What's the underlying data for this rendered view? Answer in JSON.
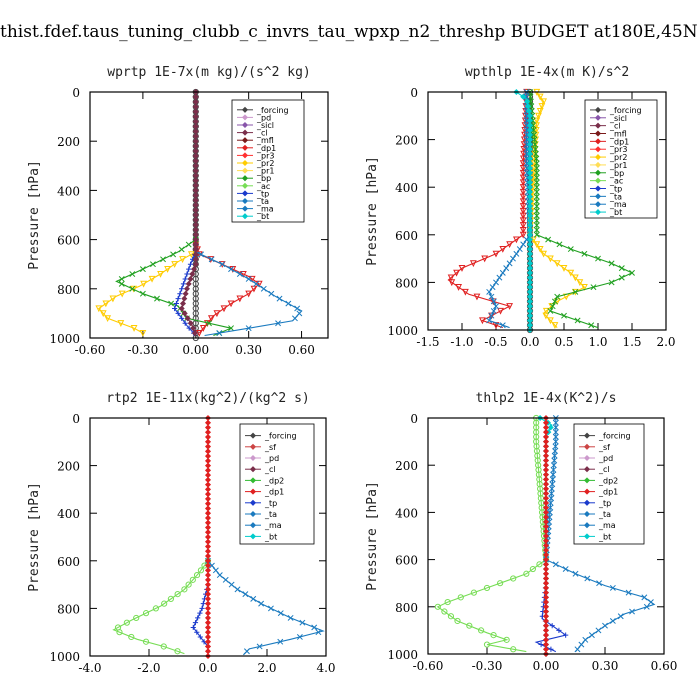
{
  "page_title": "thist.fdef.taus_tuning_clubb_c_invrs_tau_wpxp_n2_threshp  BUDGET at180E,45N",
  "colors": {
    "forcing": "#444444",
    "pd": "#cc99cc",
    "sicl": "#8855aa",
    "cl": "#7a2e4a",
    "mfl": "#7a1a1a",
    "dp1": "#e02020",
    "pr3": "#ff3030",
    "pr2": "#ffcc00",
    "pr1": "#ffdd55",
    "bp": "#20a020",
    "ac": "#77dd55",
    "tp": "#1a3acc",
    "ta": "#1a7abf",
    "ma": "#1a7abf",
    "bt": "#00cccc",
    "sf": "#cc4444",
    "dp2": "#33bb33"
  },
  "chart_data": [
    {
      "type": "line",
      "title": "wprtp   1E-7x(m kg)/(s^2 kg)",
      "ylabel": "Pressure [hPa]",
      "xlim": [
        -0.6,
        0.75
      ],
      "ylim": [
        1000,
        0
      ],
      "xticks": [
        -0.6,
        -0.3,
        0.0,
        0.3,
        0.6
      ],
      "xticklabels": [
        "-0.60",
        "-0.30",
        "0.00",
        "0.30",
        "0.60"
      ],
      "yticks": [
        0,
        200,
        400,
        600,
        800,
        1000
      ],
      "yticklabels": [
        "0",
        "200",
        "400",
        "600",
        "800",
        "1000"
      ],
      "legend": [
        "_forcing",
        "_pd",
        "_sicl",
        "_cl",
        "_mfl",
        "_dp1",
        "_pr3",
        "_pr2",
        "_pr1",
        "_bp",
        "_ac",
        "_tp",
        "_ta",
        "_ma",
        "_bt"
      ],
      "series": [
        {
          "name": "_forcing",
          "key": "forcing",
          "marker": "circle",
          "points": [
            [
              0.0,
              0
            ],
            [
              0.0,
              1000
            ]
          ]
        },
        {
          "name": "_dp1",
          "key": "dp1",
          "marker": "tri",
          "points": [
            [
              0.0,
              620
            ],
            [
              0.02,
              660
            ],
            [
              0.15,
              700
            ],
            [
              0.3,
              750
            ],
            [
              0.36,
              780
            ],
            [
              0.3,
              820
            ],
            [
              0.2,
              860
            ],
            [
              0.1,
              910
            ],
            [
              0.02,
              980
            ]
          ]
        },
        {
          "name": "_pr2",
          "key": "pr2",
          "marker": "tri",
          "points": [
            [
              0.0,
              650
            ],
            [
              -0.1,
              690
            ],
            [
              -0.2,
              740
            ],
            [
              -0.32,
              790
            ],
            [
              -0.45,
              830
            ],
            [
              -0.55,
              880
            ],
            [
              -0.5,
              920
            ],
            [
              -0.35,
              960
            ],
            [
              -0.3,
              980
            ]
          ]
        },
        {
          "name": "_bp",
          "key": "bp",
          "marker": "x",
          "points": [
            [
              0.0,
              600
            ],
            [
              -0.1,
              650
            ],
            [
              -0.3,
              720
            ],
            [
              -0.45,
              770
            ],
            [
              -0.3,
              820
            ],
            [
              -0.1,
              870
            ],
            [
              -0.05,
              920
            ],
            [
              0.2,
              960
            ],
            [
              0.1,
              990
            ]
          ]
        },
        {
          "name": "_tp",
          "key": "tp",
          "marker": "plus",
          "points": [
            [
              0.0,
              650
            ],
            [
              -0.03,
              700
            ],
            [
              -0.08,
              800
            ],
            [
              -0.12,
              880
            ],
            [
              -0.05,
              950
            ],
            [
              0.0,
              990
            ]
          ]
        },
        {
          "name": "_ta",
          "key": "ta",
          "marker": "x",
          "points": [
            [
              0.0,
              650
            ],
            [
              0.15,
              700
            ],
            [
              0.3,
              760
            ],
            [
              0.45,
              830
            ],
            [
              0.6,
              890
            ],
            [
              0.55,
              930
            ],
            [
              0.3,
              960
            ],
            [
              0.05,
              990
            ]
          ]
        },
        {
          "name": "_cl",
          "key": "cl",
          "marker": "diamond",
          "points": [
            [
              0.0,
              0
            ],
            [
              0.0,
              700
            ],
            [
              -0.05,
              800
            ],
            [
              -0.08,
              880
            ],
            [
              -0.02,
              950
            ],
            [
              0.0,
              990
            ]
          ]
        }
      ]
    },
    {
      "type": "line",
      "title": "wpthlp   1E-4x(m K)/s^2",
      "ylabel": "Pressure [hPa]",
      "xlim": [
        -1.5,
        2.0
      ],
      "ylim": [
        1000,
        0
      ],
      "xticks": [
        -1.5,
        -1.0,
        -0.5,
        0.0,
        0.5,
        1.0,
        1.5,
        2.0
      ],
      "xticklabels": [
        "-1.5",
        "-1.0",
        "-0.5",
        "0.0",
        "0.5",
        "1.0",
        "1.5",
        "2.0"
      ],
      "yticks": [
        0,
        200,
        400,
        600,
        800,
        1000
      ],
      "yticklabels": [
        "0",
        "200",
        "400",
        "600",
        "800",
        "1000"
      ],
      "legend": [
        "_forcing",
        "_sicl",
        "_cl",
        "_mfl",
        "_dp1",
        "_pr3",
        "_pr2",
        "_pr1",
        "_bp",
        "_ac",
        "_tp",
        "_ta",
        "_ma",
        "_bt"
      ],
      "series": [
        {
          "name": "_forcing",
          "key": "forcing",
          "marker": "circle",
          "points": [
            [
              0.0,
              0
            ],
            [
              0.0,
              1000
            ]
          ]
        },
        {
          "name": "_pr2",
          "key": "pr2",
          "marker": "tri",
          "points": [
            [
              0.1,
              0
            ],
            [
              0.2,
              40
            ],
            [
              0.1,
              120
            ],
            [
              0.0,
              600
            ],
            [
              0.2,
              680
            ],
            [
              0.6,
              760
            ],
            [
              0.8,
              820
            ],
            [
              0.4,
              880
            ],
            [
              0.2,
              930
            ],
            [
              0.4,
              990
            ]
          ]
        },
        {
          "name": "_dp1",
          "key": "dp1",
          "marker": "tri",
          "points": [
            [
              -0.05,
              0
            ],
            [
              -0.1,
              300
            ],
            [
              -0.1,
              600
            ],
            [
              -0.5,
              680
            ],
            [
              -1.0,
              740
            ],
            [
              -1.2,
              790
            ],
            [
              -0.9,
              850
            ],
            [
              -0.3,
              900
            ],
            [
              -0.7,
              960
            ],
            [
              -0.4,
              990
            ]
          ]
        },
        {
          "name": "_bp",
          "key": "bp",
          "marker": "x",
          "points": [
            [
              0.0,
              0
            ],
            [
              0.1,
              300
            ],
            [
              0.1,
              600
            ],
            [
              0.6,
              660
            ],
            [
              1.2,
              720
            ],
            [
              1.5,
              760
            ],
            [
              1.2,
              800
            ],
            [
              0.4,
              860
            ],
            [
              0.3,
              920
            ],
            [
              1.0,
              990
            ]
          ]
        },
        {
          "name": "_ta",
          "key": "ta",
          "marker": "x",
          "points": [
            [
              -0.05,
              0
            ],
            [
              -0.05,
              300
            ],
            [
              0.0,
              600
            ],
            [
              -0.2,
              680
            ],
            [
              -0.4,
              760
            ],
            [
              -0.6,
              840
            ],
            [
              -0.5,
              900
            ],
            [
              -0.6,
              960
            ],
            [
              -0.3,
              990
            ]
          ]
        },
        {
          "name": "_bt",
          "key": "bt",
          "marker": "diamond",
          "points": [
            [
              -0.2,
              0
            ],
            [
              -0.05,
              30
            ],
            [
              0.0,
              100
            ],
            [
              0.0,
              1000
            ]
          ]
        }
      ]
    },
    {
      "type": "line",
      "title": "rtp2   1E-11x(kg^2)/(kg^2 s)",
      "ylabel": "Pressure [hPa]",
      "xlim": [
        -4.0,
        4.0
      ],
      "ylim": [
        1000,
        0
      ],
      "xticks": [
        -4.0,
        -2.0,
        0.0,
        2.0,
        4.0
      ],
      "xticklabels": [
        "-4.0",
        "-2.0",
        "0.0",
        "2.0",
        "4.0"
      ],
      "yticks": [
        0,
        200,
        400,
        600,
        800,
        1000
      ],
      "yticklabels": [
        "0",
        "200",
        "400",
        "600",
        "800",
        "1000"
      ],
      "legend": [
        "_forcing",
        "_sf",
        "_pd",
        "_cl",
        "_dp2",
        "_dp1",
        "_tp",
        "_ta",
        "_ma",
        "_bt"
      ],
      "series": [
        {
          "name": "_dp1",
          "key": "ac",
          "marker": "circle",
          "points": [
            [
              0.0,
              600
            ],
            [
              -0.3,
              650
            ],
            [
              -0.8,
              720
            ],
            [
              -1.6,
              790
            ],
            [
              -2.6,
              850
            ],
            [
              -3.2,
              890
            ],
            [
              -2.4,
              930
            ],
            [
              -1.5,
              960
            ],
            [
              -0.8,
              990
            ]
          ]
        },
        {
          "name": "_ta",
          "key": "ta",
          "marker": "x",
          "points": [
            [
              0.0,
              600
            ],
            [
              0.4,
              660
            ],
            [
              1.0,
              720
            ],
            [
              1.8,
              780
            ],
            [
              2.8,
              840
            ],
            [
              3.9,
              895
            ],
            [
              2.8,
              930
            ],
            [
              1.4,
              970
            ],
            [
              1.2,
              995
            ]
          ]
        },
        {
          "name": "_tp",
          "key": "tp",
          "marker": "plus",
          "points": [
            [
              0.0,
              700
            ],
            [
              -0.2,
              800
            ],
            [
              -0.5,
              880
            ],
            [
              -0.2,
              930
            ],
            [
              0.0,
              960
            ]
          ]
        },
        {
          "name": "_forcing",
          "key": "dp1",
          "marker": "diamond",
          "points": [
            [
              0.0,
              0
            ],
            [
              0.0,
              1000
            ]
          ]
        }
      ]
    },
    {
      "type": "line",
      "title": "thlp2   1E-4x(K^2)/s",
      "ylabel": "Pressure [hPa]",
      "xlim": [
        -0.6,
        0.6
      ],
      "ylim": [
        1000,
        0
      ],
      "xticks": [
        -0.6,
        -0.3,
        0.0,
        0.3,
        0.6
      ],
      "xticklabels": [
        "-0.60",
        "-0.30",
        "0.00",
        "0.30",
        "0.60"
      ],
      "yticks": [
        0,
        200,
        400,
        600,
        800,
        1000
      ],
      "yticklabels": [
        "0",
        "200",
        "400",
        "600",
        "800",
        "1000"
      ],
      "legend": [
        "_forcing",
        "_sf",
        "_pd",
        "_cl",
        "_dp2",
        "_dp1",
        "_tp",
        "_ta",
        "_ma",
        "_bt"
      ],
      "series": [
        {
          "name": "_dp1",
          "key": "ac",
          "marker": "circle",
          "points": [
            [
              -0.05,
              0
            ],
            [
              -0.05,
              100
            ],
            [
              0.0,
              600
            ],
            [
              -0.1,
              660
            ],
            [
              -0.3,
              720
            ],
            [
              -0.5,
              780
            ],
            [
              -0.55,
              800
            ],
            [
              -0.45,
              860
            ],
            [
              -0.3,
              910
            ],
            [
              -0.2,
              940
            ],
            [
              -0.3,
              960
            ],
            [
              -0.1,
              990
            ]
          ]
        },
        {
          "name": "_ta",
          "key": "ta",
          "marker": "x",
          "points": [
            [
              0.05,
              0
            ],
            [
              0.05,
              100
            ],
            [
              0.0,
              600
            ],
            [
              0.15,
              660
            ],
            [
              0.3,
              710
            ],
            [
              0.5,
              760
            ],
            [
              0.55,
              790
            ],
            [
              0.4,
              830
            ],
            [
              0.3,
              880
            ],
            [
              0.2,
              940
            ],
            [
              0.15,
              990
            ]
          ]
        },
        {
          "name": "_tp",
          "key": "tp",
          "marker": "plus",
          "points": [
            [
              0.0,
              700
            ],
            [
              -0.02,
              850
            ],
            [
              0.1,
              920
            ],
            [
              -0.05,
              950
            ],
            [
              0.05,
              990
            ]
          ]
        },
        {
          "name": "_bt",
          "key": "bt",
          "marker": "diamond",
          "points": [
            [
              -0.03,
              0
            ],
            [
              0.03,
              30
            ],
            [
              0.0,
              80
            ],
            [
              0.0,
              1000
            ]
          ]
        },
        {
          "name": "_forcing",
          "key": "dp1",
          "marker": "diamond",
          "points": [
            [
              0.0,
              0
            ],
            [
              0.0,
              1000
            ]
          ]
        }
      ]
    }
  ]
}
